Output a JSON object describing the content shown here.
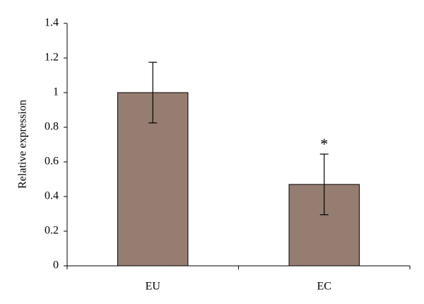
{
  "chart_data": {
    "type": "bar",
    "y_label": "Relative expression",
    "categories": [
      "EU",
      "EC"
    ],
    "series": [
      {
        "color": "#967d71",
        "values": [
          1.0,
          0.47
        ],
        "errors": [
          0.175,
          0.175
        ]
      }
    ],
    "ylim": [
      0,
      1.4
    ],
    "yticks": [
      0,
      0.2,
      0.4,
      0.6,
      0.8,
      1,
      1.2,
      1.4
    ],
    "annotations": [
      {
        "text": "*",
        "category": "EC"
      }
    ]
  }
}
